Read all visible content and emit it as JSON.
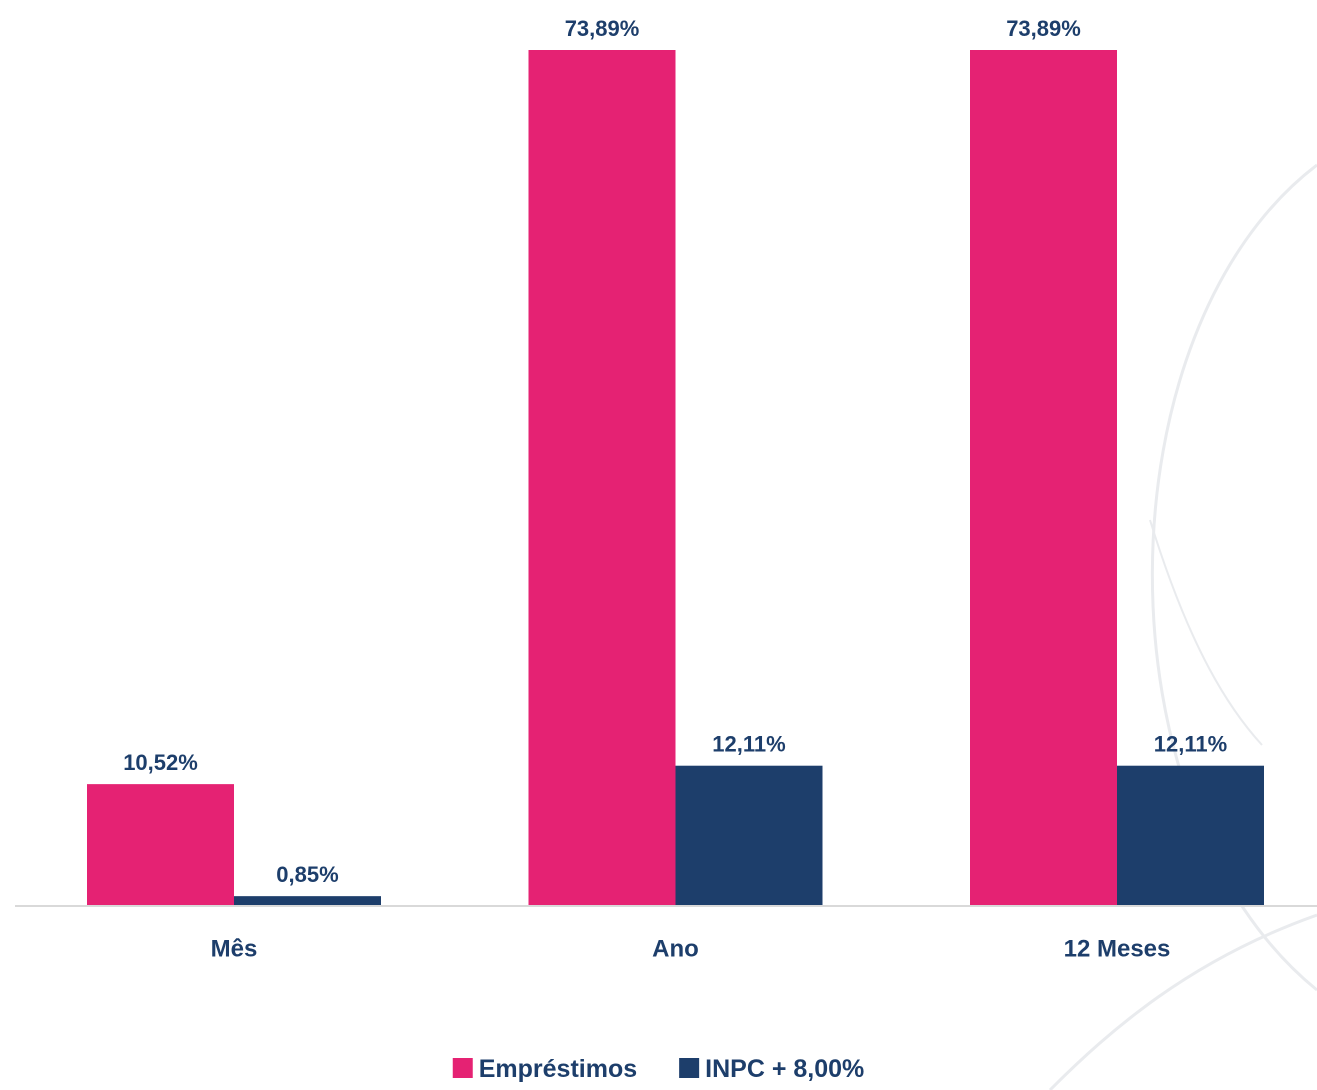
{
  "chart_data": {
    "type": "bar",
    "categories": [
      "Mês",
      "Ano",
      "12 Meses"
    ],
    "series": [
      {
        "name": "Empréstimos",
        "color": "#e52273",
        "values": [
          10.52,
          73.89,
          73.89
        ],
        "labels": [
          "10,52%",
          "73,89%",
          "73,89%"
        ]
      },
      {
        "name": "INPC + 8,00%",
        "color": "#1d3e6b",
        "values": [
          0.85,
          12.11,
          12.11
        ],
        "labels": [
          "0,85%",
          "12,11%",
          "12,11%"
        ]
      }
    ],
    "ylim": [
      0,
      73.89
    ],
    "grid": false,
    "legend_position": "bottom",
    "label_color": "#1d3e6b",
    "axis_color": "#d9d9d9",
    "decoration_color": "#e9ebee"
  }
}
